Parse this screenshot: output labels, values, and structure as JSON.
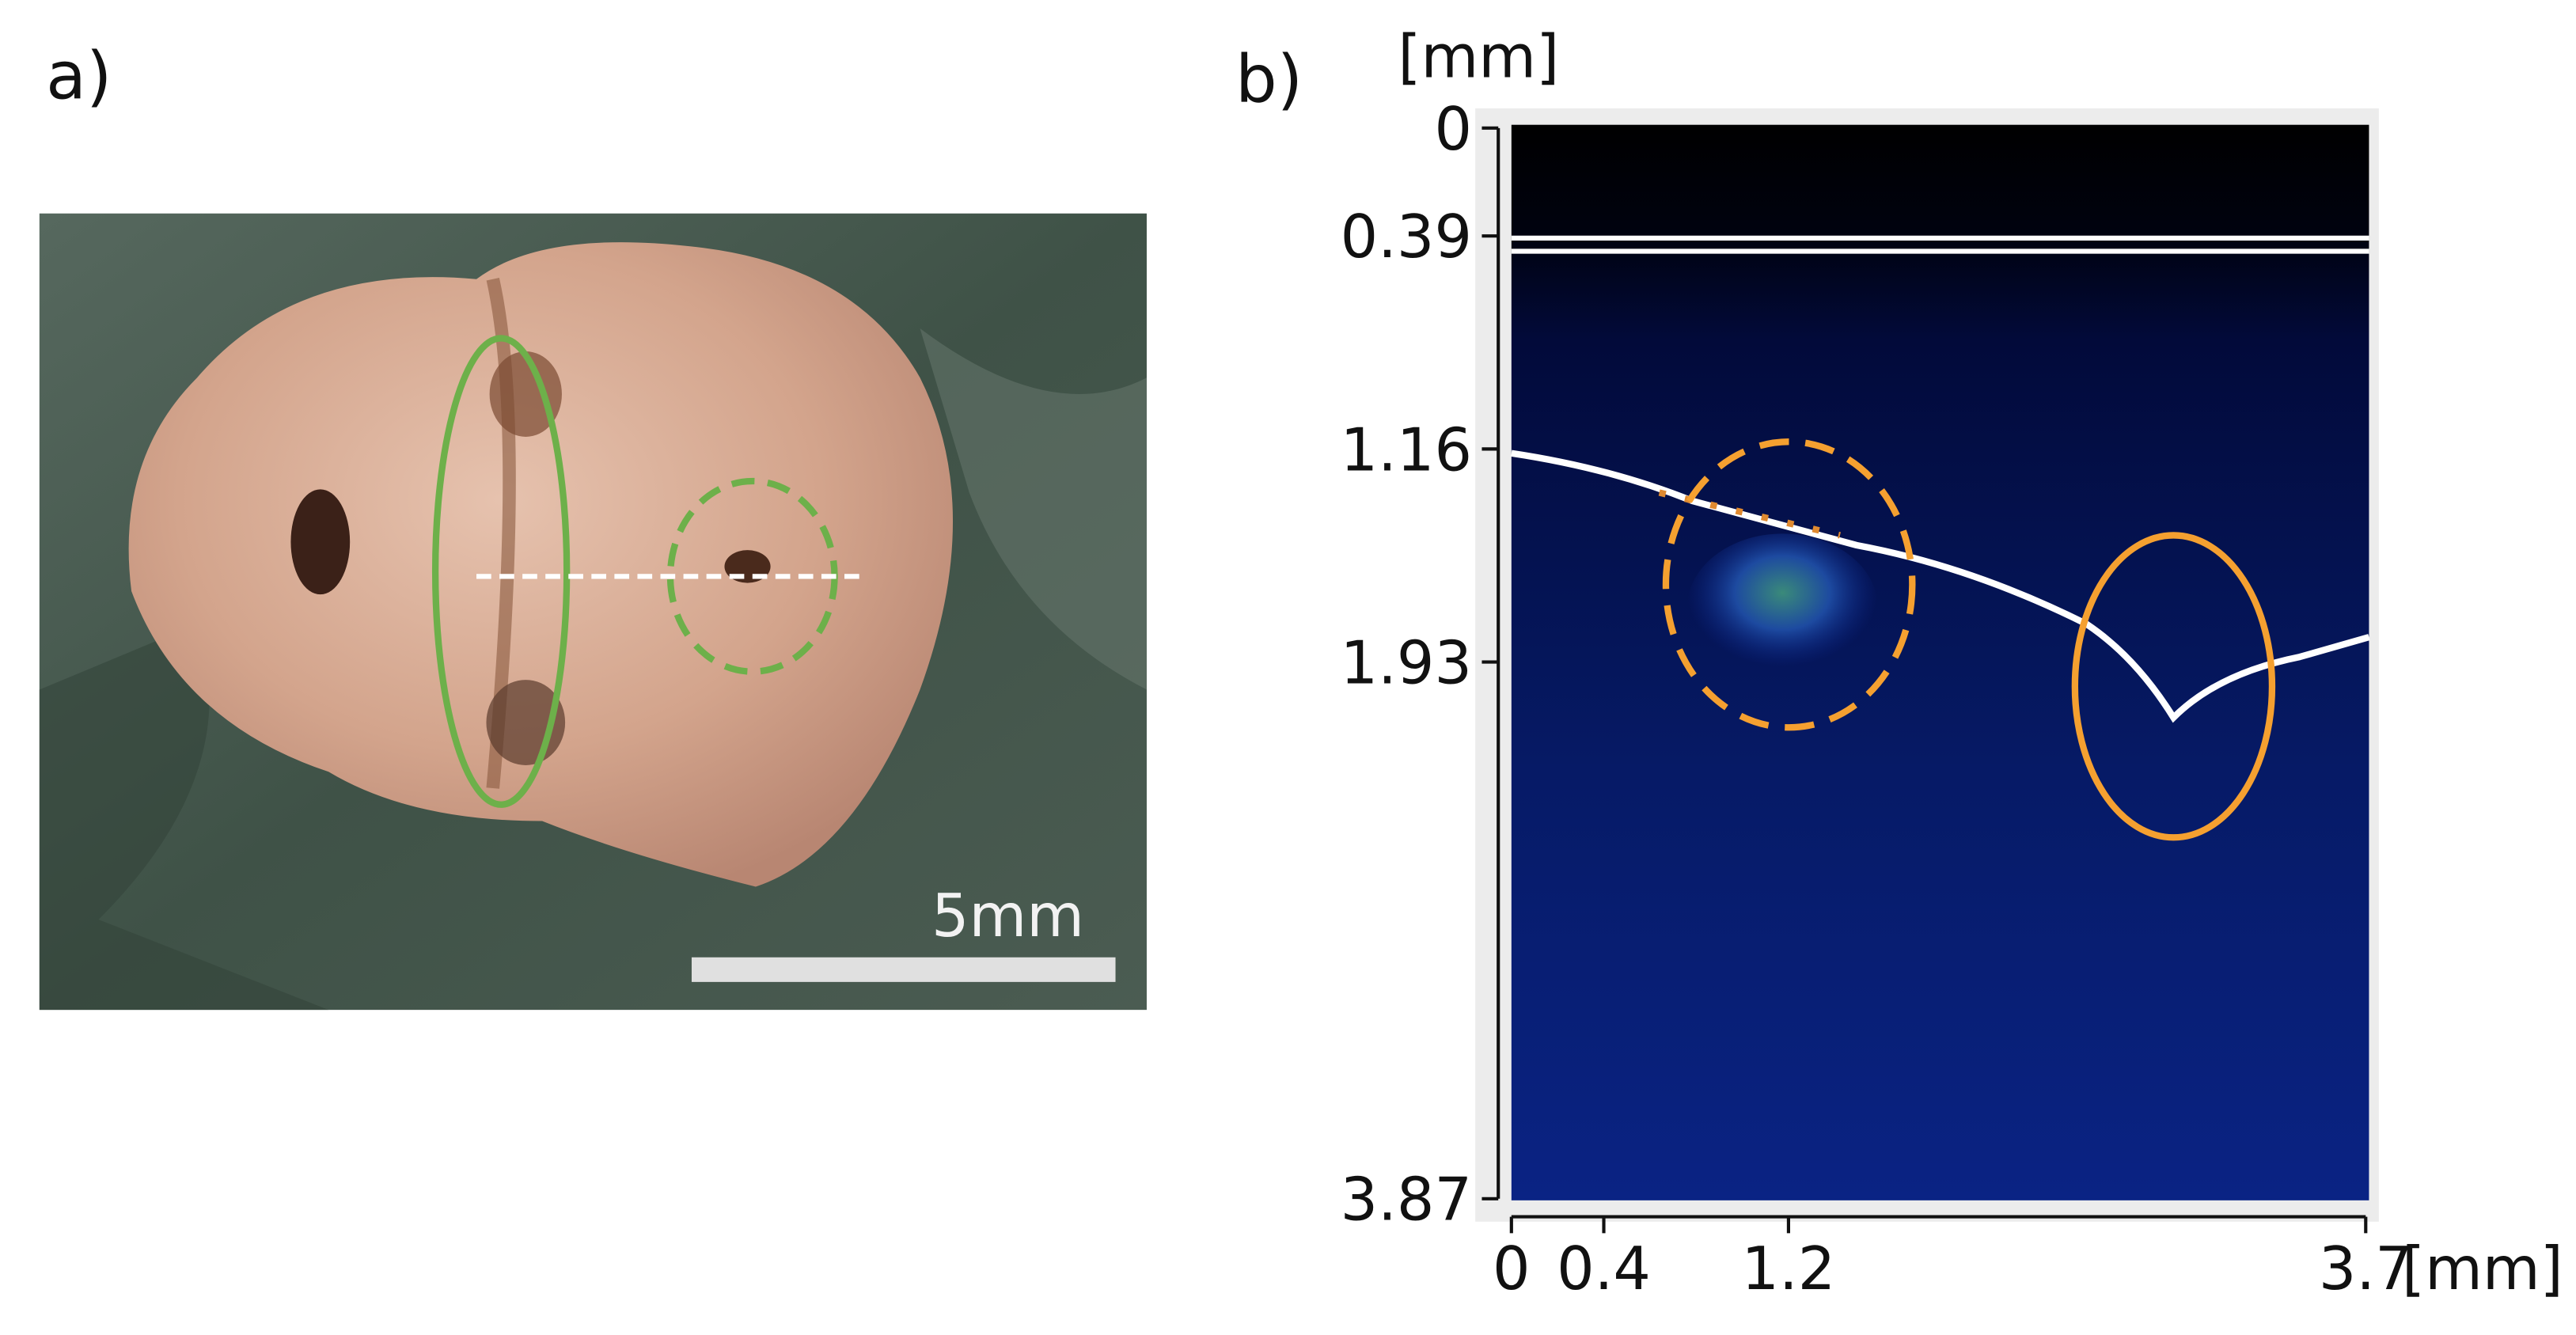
{
  "panel_a": {
    "label": "a)",
    "scale_bar": "5mm"
  },
  "panel_b": {
    "label": "b)",
    "y_unit": "[mm]",
    "x_unit": "[mm]",
    "ylim": [
      0,
      3.87
    ],
    "yticks": [
      0,
      0.39,
      1.16,
      1.93,
      3.87
    ],
    "xlim": [
      0,
      3.7
    ],
    "xticks": [
      0,
      0.4,
      1.2,
      3.7
    ]
  }
}
